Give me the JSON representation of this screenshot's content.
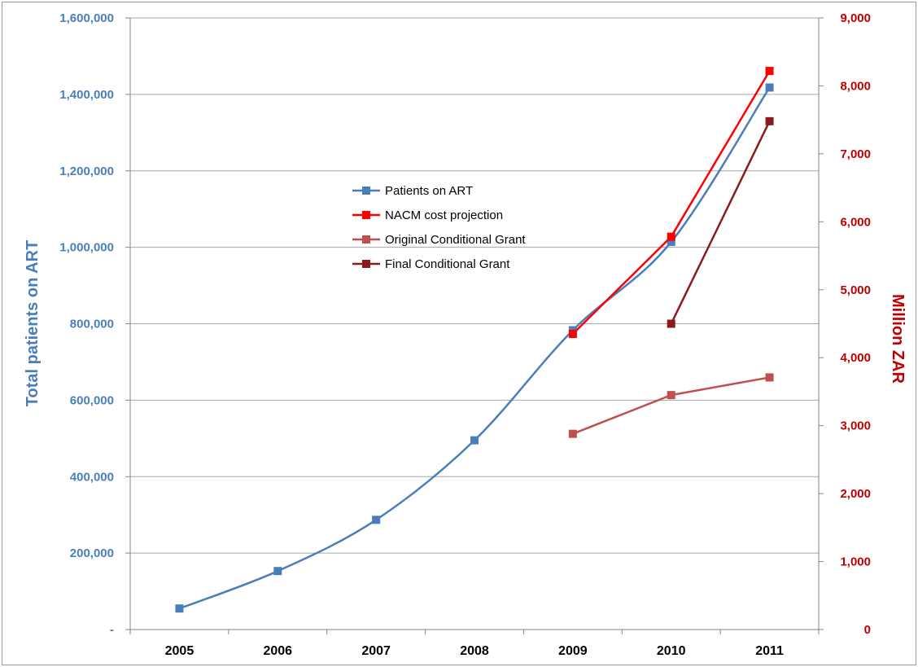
{
  "chart_data": {
    "type": "line",
    "categories": [
      "2005",
      "2006",
      "2007",
      "2008",
      "2009",
      "2010",
      "2011"
    ],
    "y_left": {
      "label": "Total patients on ART",
      "range": [
        0,
        1600000
      ],
      "ticks": [
        "-",
        "200,000",
        "400,000",
        "600,000",
        "800,000",
        "1,000,000",
        "1,200,000",
        "1,400,000",
        "1,600,000"
      ]
    },
    "y_right": {
      "label": "Million ZAR",
      "range": [
        0,
        9000
      ],
      "ticks": [
        "0",
        "1,000",
        "2,000",
        "3,000",
        "4,000",
        "5,000",
        "6,000",
        "7,000",
        "8,000",
        "9,000"
      ]
    },
    "grid": true,
    "legend_position": "center-left",
    "series": [
      {
        "name": "Patients on ART",
        "axis": "left",
        "color": "#4a7ebb",
        "smooth": true,
        "marker": "square",
        "x": [
          "2005",
          "2006",
          "2007",
          "2008",
          "2009",
          "2010",
          "2011"
        ],
        "values": [
          55000,
          153000,
          287000,
          495000,
          783000,
          1014000,
          1418000
        ]
      },
      {
        "name": "NACM cost projection",
        "axis": "right",
        "color": "#ff0000",
        "smooth": false,
        "marker": "square",
        "x": [
          "2009",
          "2010",
          "2011"
        ],
        "values": [
          4350,
          5780,
          8220
        ]
      },
      {
        "name": "Original Conditional Grant",
        "axis": "right",
        "color": "#c0504d",
        "smooth": false,
        "marker": "square",
        "x": [
          "2009",
          "2010",
          "2011"
        ],
        "values": [
          2880,
          3450,
          3710
        ]
      },
      {
        "name": "Final Conditional Grant",
        "axis": "right",
        "color": "#8b1a1a",
        "smooth": false,
        "marker": "square",
        "x": [
          "2010",
          "2011"
        ],
        "values": [
          4500,
          7480
        ]
      }
    ]
  }
}
